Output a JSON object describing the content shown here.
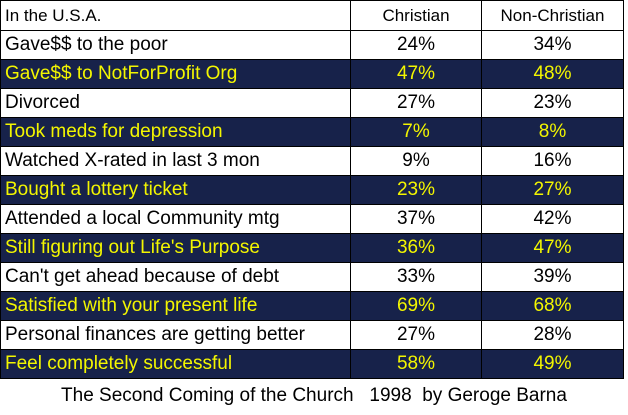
{
  "header": {
    "label": "In the U.S.A.",
    "christian": "Christian",
    "non_christian": "Non-Christian"
  },
  "rows": [
    {
      "label": "Gave$$ to the poor",
      "christian": "24%",
      "non_christian": "34%",
      "style": "light"
    },
    {
      "label": "Gave$$ to NotForProfit Org",
      "christian": "47%",
      "non_christian": "48%",
      "style": "dark"
    },
    {
      "label": "Divorced",
      "christian": "27%",
      "non_christian": "23%",
      "style": "light"
    },
    {
      "label": "Took meds for depression",
      "christian": "7%",
      "non_christian": "8%",
      "style": "dark"
    },
    {
      "label": "Watched X-rated in last 3 mon",
      "christian": "9%",
      "non_christian": "16%",
      "style": "light"
    },
    {
      "label": "Bought a lottery ticket",
      "christian": "23%",
      "non_christian": "27%",
      "style": "dark"
    },
    {
      "label": "Attended a local Community mtg",
      "christian": "37%",
      "non_christian": "42%",
      "style": "light"
    },
    {
      "label": "Still figuring out Life's Purpose",
      "christian": "36%",
      "non_christian": "47%",
      "style": "dark"
    },
    {
      "label": "Can't get ahead because of debt",
      "christian": "33%",
      "non_christian": "39%",
      "style": "light"
    },
    {
      "label": "Satisfied with your present life",
      "christian": "69%",
      "non_christian": "68%",
      "style": "dark"
    },
    {
      "label": "Personal finances are getting better",
      "christian": "27%",
      "non_christian": "28%",
      "style": "light"
    },
    {
      "label": "Feel completely successful",
      "christian": "58%",
      "non_christian": "49%",
      "style": "dark"
    }
  ],
  "caption": "The Second Coming of the Church   1998  by Geroge Barna",
  "colors": {
    "dark_row_bg": "#17224a",
    "dark_row_text": "#f3f600",
    "light_row_bg": "#ffffff",
    "light_row_text": "#000000"
  }
}
